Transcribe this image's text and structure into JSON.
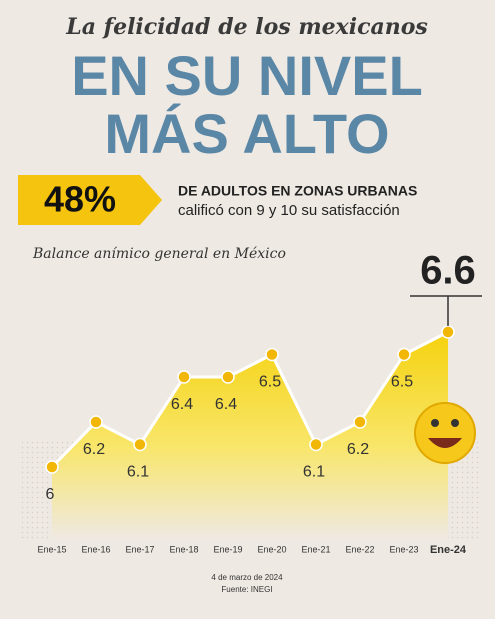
{
  "header": {
    "kicker": "La felicidad de los mexicanos",
    "title_line1": "EN SU NIVEL",
    "title_line2": "MÁS ALTO"
  },
  "banner": {
    "stat": "48%",
    "line1": "DE ADULTOS EN ZONAS URBANAS",
    "line2": "calificó con 9 y 10 su satisfacción"
  },
  "chart_data": {
    "type": "area",
    "title": "Balance anímico general en México",
    "categories": [
      "Ene-15",
      "Ene-16",
      "Ene-17",
      "Ene-18",
      "Ene-19",
      "Ene-20",
      "Ene-21",
      "Ene-22",
      "Ene-23",
      "Ene-24"
    ],
    "values": [
      6,
      6.2,
      6.1,
      6.4,
      6.4,
      6.5,
      6.1,
      6.2,
      6.5,
      6.6
    ],
    "color": "#f5d20f"
  },
  "footer": {
    "date": "4 de marzo de 2024",
    "source": "Fuente: INEGI"
  }
}
